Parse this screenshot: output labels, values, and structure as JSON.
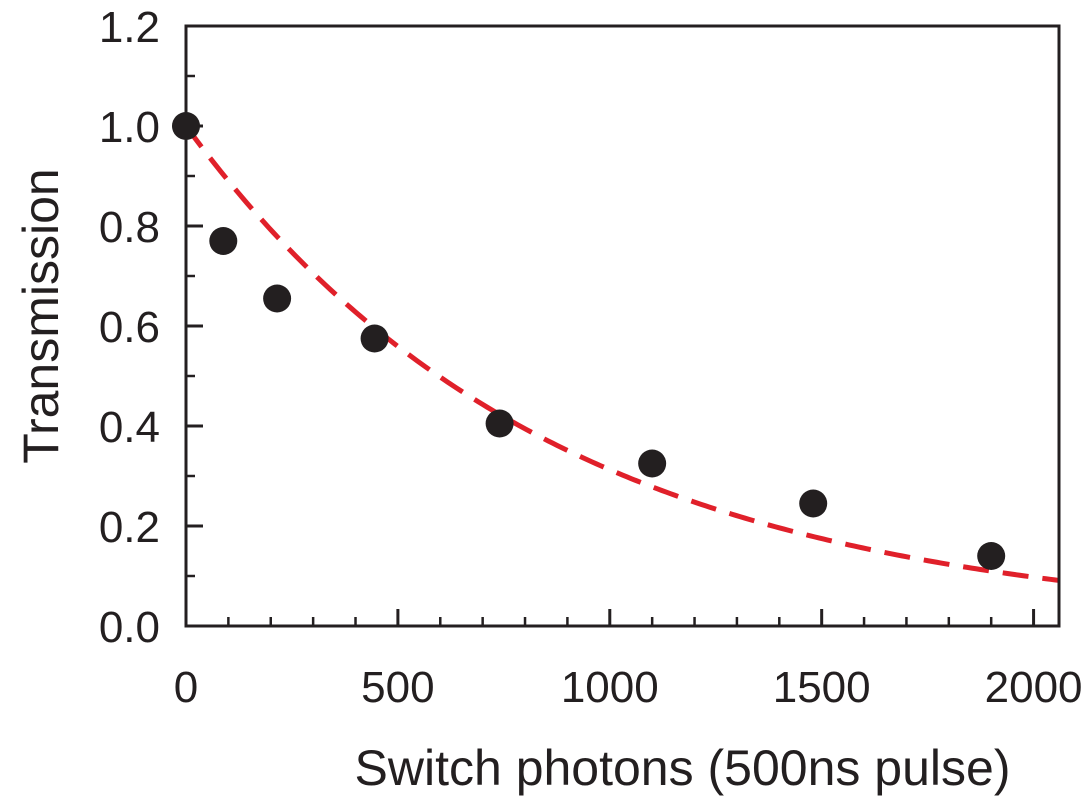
{
  "chart_data": {
    "type": "scatter",
    "title": "",
    "xlabel": "Switch photons (500ns pulse)",
    "ylabel": "Transmission",
    "xlim": [
      0,
      2060
    ],
    "ylim": [
      0.0,
      1.2
    ],
    "x_ticks": [
      0,
      500,
      1000,
      1500,
      2000
    ],
    "x_tick_labels": [
      "0",
      "500",
      "1000",
      "1500",
      "2000"
    ],
    "x_minor_step": 100,
    "y_ticks": [
      0.0,
      0.2,
      0.4,
      0.6,
      0.8,
      1.0,
      1.2
    ],
    "y_tick_labels": [
      "0.0",
      "0.2",
      "0.4",
      "0.6",
      "0.8",
      "1.0",
      "1.2"
    ],
    "y_minor_step": 0.1,
    "grid": false,
    "legend": "none",
    "series": [
      {
        "kind": "points",
        "color": "#231f20",
        "x": [
          0,
          88,
          215,
          445,
          740,
          1100,
          1480,
          1900
        ],
        "y": [
          1.0,
          0.77,
          0.655,
          0.575,
          0.405,
          0.325,
          0.245,
          0.14
        ]
      },
      {
        "kind": "fit",
        "style": "dashed",
        "color": "#e0202a",
        "decay_constant": 860,
        "x_range": [
          0,
          2060
        ]
      }
    ]
  }
}
